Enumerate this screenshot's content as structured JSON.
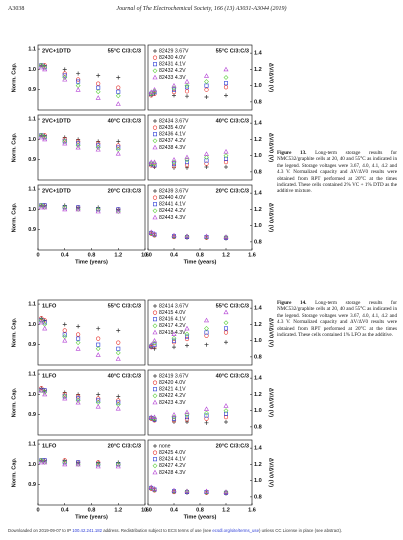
{
  "header": {
    "page": "A3038",
    "journal": "Journal of The Electrochemical Society, 166 (13) A3031-A3044 (2019)"
  },
  "figures": [
    {
      "caption": {
        "label": "Figure 13.",
        "text": "Long-term storage results for NMC532/graphite cells at 20, 40 and 55°C as indicated in the legend. Storage voltages were 3.67, 4.0, 4.1, 4.2 and 4.3 V. Normalized capacity and ΔV/ΔV0 results were obtained from RPT performed at 20°C at the times indicated. These cells contained 2% VC + 1% DTD as the additive mixture."
      },
      "y_label": "Norm. Cap.",
      "y2_label": "ΔV/ΔV0 (V)",
      "x_label": "Time (years)",
      "xlim": [
        0,
        1.6
      ],
      "xticks": [
        0,
        0.4,
        0.8,
        1.2,
        1.6
      ],
      "x2ticks": [
        {
          "value": 0,
          "label": "0.0"
        },
        0.4,
        0.8,
        1.2,
        1.6
      ],
      "ylim": [
        0.8,
        1.12
      ],
      "yticks": [
        0.9,
        {
          "value": 1,
          "label": "1.0"
        },
        1.1
      ],
      "y2lim": [
        0.7,
        1.5
      ],
      "y2ticks": [
        0.8,
        {
          "value": 1,
          "label": "1.0"
        },
        1.2,
        1.4
      ],
      "x": [
        0.05,
        0.1,
        0.4,
        0.6,
        0.9,
        1.2
      ],
      "rows": [
        {
          "group": "2VC+1DTD",
          "condition": "55°C C/3:C/3",
          "series": [
            {
              "name": "82429 3.67V",
              "color": "#333333",
              "marker": "plus",
              "capacity": [
                1.02,
                1.02,
                1.0,
                0.98,
                0.97,
                0.96
              ],
              "dv": [
                0.88,
                0.9,
                0.88,
                0.87,
                0.86,
                0.88
              ]
            },
            {
              "name": "82430 4.0V",
              "color": "#e8312a",
              "marker": "circle",
              "capacity": [
                1.02,
                1.02,
                0.98,
                0.95,
                0.93,
                0.91
              ],
              "dv": [
                0.88,
                0.9,
                0.92,
                0.93,
                0.95,
                0.98
              ]
            },
            {
              "name": "82431 4.1V",
              "color": "#2a3bd6",
              "marker": "square",
              "capacity": [
                1.02,
                1.01,
                0.97,
                0.94,
                0.91,
                0.89
              ],
              "dv": [
                0.9,
                0.92,
                0.95,
                0.98,
                1.0,
                1.03
              ]
            },
            {
              "name": "82432 4.2V",
              "color": "#5fd13f",
              "marker": "diamond",
              "capacity": [
                1.02,
                1.01,
                0.96,
                0.92,
                0.89,
                0.87
              ],
              "dv": [
                0.9,
                0.93,
                0.97,
                1.0,
                1.05,
                1.1
              ]
            },
            {
              "name": "82433 4.3V",
              "color": "#b23fd4",
              "marker": "triangle",
              "capacity": [
                1.01,
                1.0,
                0.95,
                0.9,
                0.86,
                0.83
              ],
              "dv": [
                0.92,
                0.95,
                1.0,
                1.05,
                1.12,
                1.2
              ]
            }
          ]
        },
        {
          "group": "2VC+1DTD",
          "condition": "40°C C/3:C/3",
          "series": [
            {
              "name": "82434 3.67V",
              "color": "#333333",
              "marker": "plus",
              "capacity": [
                1.02,
                1.02,
                1.01,
                1.0,
                0.99,
                0.99
              ],
              "dv": [
                0.88,
                0.86,
                0.85,
                0.85,
                0.86,
                0.86
              ]
            },
            {
              "name": "82435 4.0V",
              "color": "#e8312a",
              "marker": "circle",
              "capacity": [
                1.02,
                1.02,
                1.0,
                0.99,
                0.98,
                0.97
              ],
              "dv": [
                0.88,
                0.87,
                0.87,
                0.88,
                0.9,
                0.92
              ]
            },
            {
              "name": "82436 4.1V",
              "color": "#2a3bd6",
              "marker": "square",
              "capacity": [
                1.02,
                1.01,
                0.99,
                0.98,
                0.97,
                0.96
              ],
              "dv": [
                0.9,
                0.88,
                0.9,
                0.92,
                0.94,
                0.96
              ]
            },
            {
              "name": "82437 4.2V",
              "color": "#5fd13f",
              "marker": "diamond",
              "capacity": [
                1.02,
                1.01,
                0.99,
                0.97,
                0.96,
                0.95
              ],
              "dv": [
                0.9,
                0.9,
                0.92,
                0.95,
                0.98,
                1.0
              ]
            },
            {
              "name": "82438 4.3V",
              "color": "#b23fd4",
              "marker": "triangle",
              "capacity": [
                1.01,
                1.0,
                0.98,
                0.96,
                0.95,
                0.93
              ],
              "dv": [
                0.92,
                0.92,
                0.95,
                0.98,
                1.02,
                1.05
              ]
            }
          ]
        },
        {
          "group": "2VC+1DTD",
          "condition": "20°C C/3:C/3",
          "series": [
            {
              "name": "82439 3.67V",
              "color": "#333333",
              "marker": "plus",
              "capacity": [
                1.02,
                1.02,
                1.02,
                1.01,
                1.01,
                1.0
              ],
              "dv": [
                0.9,
                0.88,
                0.86,
                0.85,
                0.85,
                0.84
              ]
            },
            {
              "name": "82440 4.0V",
              "color": "#e8312a",
              "marker": "circle",
              "capacity": [
                1.02,
                1.02,
                1.01,
                1.01,
                1.0,
                1.0
              ],
              "dv": [
                0.9,
                0.88,
                0.86,
                0.86,
                0.85,
                0.85
              ]
            },
            {
              "name": "82441 4.1V",
              "color": "#2a3bd6",
              "marker": "square",
              "capacity": [
                1.02,
                1.02,
                1.01,
                1.01,
                1.0,
                1.0
              ],
              "dv": [
                0.91,
                0.89,
                0.87,
                0.86,
                0.86,
                0.85
              ]
            },
            {
              "name": "82442 4.2V",
              "color": "#5fd13f",
              "marker": "diamond",
              "capacity": [
                1.02,
                1.01,
                1.01,
                1.0,
                1.0,
                0.99
              ],
              "dv": [
                0.91,
                0.89,
                0.87,
                0.87,
                0.86,
                0.86
              ]
            },
            {
              "name": "82443 4.3V",
              "color": "#b23fd4",
              "marker": "triangle",
              "capacity": [
                1.01,
                1.01,
                1.0,
                1.0,
                0.99,
                0.99
              ],
              "dv": [
                0.92,
                0.9,
                0.88,
                0.87,
                0.87,
                0.86
              ]
            }
          ]
        }
      ]
    },
    {
      "caption": {
        "label": "Figure 14.",
        "text": "Long-term storage results for NMC532/graphite cells at 20, 40 and 55°C as indicated in the legend. Storage voltages were 3.67, 4.0, 4.1, 4.2 and 4.3 V. Normalized capacity and ΔV/ΔV0 results were obtained from RPT performed at 20°C at the times indicated. These cells contained 1% LFO as the additive."
      },
      "y_label": "Norm. Cap.",
      "y2_label": "ΔV/ΔV0 (V)",
      "x_label": "Time (years)",
      "xlim": [
        0,
        1.6
      ],
      "xticks": [
        0,
        0.4,
        0.8,
        1.2,
        1.6
      ],
      "x2ticks": [
        {
          "value": 0,
          "label": "0.0"
        },
        0.4,
        0.8,
        1.2,
        1.6
      ],
      "ylim": [
        0.8,
        1.12
      ],
      "yticks": [
        0.9,
        {
          "value": 1,
          "label": "1.0"
        },
        1.1
      ],
      "y2lim": [
        0.7,
        1.5
      ],
      "y2ticks": [
        0.8,
        {
          "value": 1,
          "label": "1.0"
        },
        1.2,
        1.4
      ],
      "x": [
        0.05,
        0.1,
        0.4,
        0.6,
        0.9,
        1.2
      ],
      "rows": [
        {
          "group": "1LFO",
          "condition": "55°C C/3:C/3",
          "series": [
            {
              "name": "82414 3.67V",
              "color": "#333333",
              "marker": "plus",
              "capacity": [
                1.03,
                1.02,
                1.0,
                0.99,
                0.98,
                0.97
              ],
              "dv": [
                0.92,
                0.9,
                0.92,
                0.94,
                0.95,
                0.98
              ]
            },
            {
              "name": "82415 4.0V",
              "color": "#e8312a",
              "marker": "circle",
              "capacity": [
                1.03,
                1.02,
                0.97,
                0.95,
                0.93,
                0.91
              ],
              "dv": [
                0.92,
                0.93,
                0.98,
                1.02,
                1.06,
                1.1
              ]
            },
            {
              "name": "82416 4.1V",
              "color": "#2a3bd6",
              "marker": "square",
              "capacity": [
                1.02,
                1.01,
                0.95,
                0.93,
                0.9,
                0.88
              ],
              "dv": [
                0.93,
                0.95,
                1.0,
                1.05,
                1.1,
                1.15
              ]
            },
            {
              "name": "82417 4.2V",
              "color": "#5fd13f",
              "marker": "diamond",
              "capacity": [
                1.02,
                1.0,
                0.94,
                0.91,
                0.88,
                0.86
              ],
              "dv": [
                0.94,
                0.97,
                1.03,
                1.08,
                1.15,
                1.22
              ]
            },
            {
              "name": "82418 4.3V",
              "color": "#b23fd4",
              "marker": "triangle",
              "capacity": [
                1.01,
                0.98,
                0.92,
                0.88,
                0.85,
                0.83
              ],
              "dv": [
                0.95,
                1.0,
                1.08,
                1.15,
                1.25,
                1.35
              ]
            }
          ]
        },
        {
          "group": "1LFO",
          "condition": "40°C C/3:C/3",
          "series": [
            {
              "name": "82419 3.67V",
              "color": "#333333",
              "marker": "plus",
              "capacity": [
                1.03,
                1.02,
                1.01,
                1.0,
                1.0,
                0.99
              ],
              "dv": [
                0.9,
                0.88,
                0.86,
                0.86,
                0.85,
                0.86
              ]
            },
            {
              "name": "82420 4.0V",
              "color": "#e8312a",
              "marker": "circle",
              "capacity": [
                1.03,
                1.02,
                1.0,
                0.99,
                0.98,
                0.97
              ],
              "dv": [
                0.9,
                0.88,
                0.88,
                0.89,
                0.9,
                0.92
              ]
            },
            {
              "name": "82421 4.1V",
              "color": "#2a3bd6",
              "marker": "square",
              "capacity": [
                1.02,
                1.02,
                0.99,
                0.98,
                0.97,
                0.96
              ],
              "dv": [
                0.91,
                0.89,
                0.9,
                0.92,
                0.94,
                0.96
              ]
            },
            {
              "name": "82422 4.2V",
              "color": "#5fd13f",
              "marker": "diamond",
              "capacity": [
                1.02,
                1.01,
                0.99,
                0.97,
                0.96,
                0.95
              ],
              "dv": [
                0.91,
                0.9,
                0.92,
                0.95,
                0.97,
                1.0
              ]
            },
            {
              "name": "82423 4.3V",
              "color": "#b23fd4",
              "marker": "triangle",
              "capacity": [
                1.02,
                1.0,
                0.98,
                0.96,
                0.94,
                0.93
              ],
              "dv": [
                0.92,
                0.92,
                0.95,
                0.98,
                1.02,
                1.06
              ]
            }
          ]
        },
        {
          "group": "1LFO",
          "condition": "20°C C/3:C/3",
          "series": [
            {
              "name": "none",
              "color": "#333333",
              "marker": "plus",
              "capacity": [
                1.02,
                1.02,
                1.02,
                1.01,
                1.01,
                1.01
              ],
              "dv": [
                0.9,
                0.88,
                0.86,
                0.85,
                0.85,
                0.84
              ]
            },
            {
              "name": "82425 4.0V",
              "color": "#e8312a",
              "marker": "circle",
              "capacity": [
                1.02,
                1.02,
                1.02,
                1.01,
                1.01,
                1.0
              ],
              "dv": [
                0.9,
                0.88,
                0.86,
                0.86,
                0.85,
                0.85
              ]
            },
            {
              "name": "82424 4.1V",
              "color": "#2a3bd6",
              "marker": "square",
              "capacity": [
                1.02,
                1.02,
                1.01,
                1.01,
                1.0,
                1.0
              ],
              "dv": [
                0.91,
                0.89,
                0.87,
                0.86,
                0.86,
                0.85
              ]
            },
            {
              "name": "82427 4.2V",
              "color": "#5fd13f",
              "marker": "diamond",
              "capacity": [
                1.02,
                1.01,
                1.01,
                1.0,
                1.0,
                1.0
              ],
              "dv": [
                0.91,
                0.89,
                0.87,
                0.87,
                0.86,
                0.86
              ]
            },
            {
              "name": "82428 4.3V",
              "color": "#b23fd4",
              "marker": "triangle",
              "capacity": [
                1.01,
                1.01,
                1.0,
                1.0,
                0.99,
                0.99
              ],
              "dv": [
                0.92,
                0.9,
                0.88,
                0.87,
                0.87,
                0.86
              ]
            }
          ]
        }
      ]
    }
  ],
  "footer": [
    "Downloaded on 2019-09-07 to IP ",
    "100.42.241.182",
    " address. Redistribution subject to ECS terms of use (see ",
    "ecsdl.org/site/terms_use",
    ") unless CC License in place (see abstract)."
  ]
}
